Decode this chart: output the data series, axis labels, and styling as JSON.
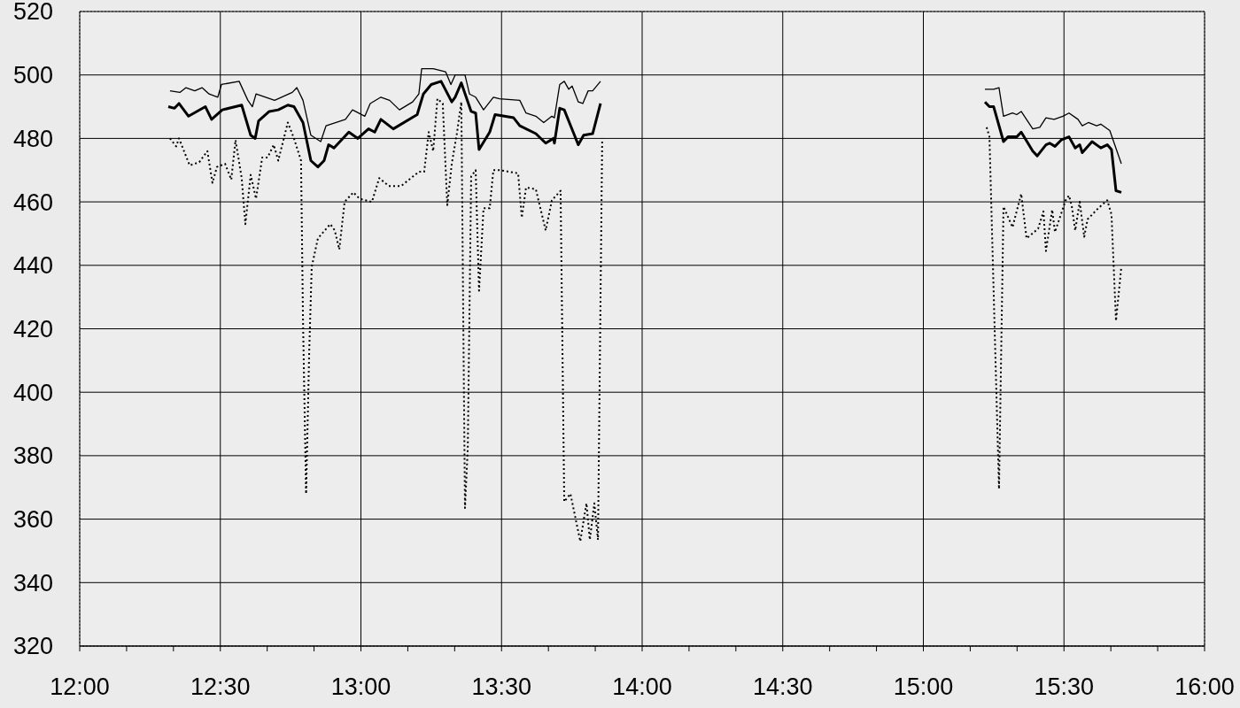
{
  "chart_data": {
    "type": "line",
    "grid": true,
    "marker": "none",
    "xlim": [
      12,
      16
    ],
    "ylim": [
      320,
      520
    ],
    "yticks": [
      320,
      340,
      360,
      380,
      400,
      420,
      440,
      460,
      480,
      500,
      520
    ],
    "xticks": [
      {
        "value": 12,
        "label": "12:00"
      },
      {
        "value": 12.1667,
        "label": null
      },
      {
        "value": 12.3333,
        "label": null
      },
      {
        "value": 12.5,
        "label": "12:30"
      },
      {
        "value": 12.6667,
        "label": null
      },
      {
        "value": 12.8333,
        "label": null
      },
      {
        "value": 13,
        "label": "13:00"
      },
      {
        "value": 13.1667,
        "label": null
      },
      {
        "value": 13.3333,
        "label": null
      },
      {
        "value": 13.5,
        "label": "13:30"
      },
      {
        "value": 13.6667,
        "label": null
      },
      {
        "value": 13.8333,
        "label": null
      },
      {
        "value": 14,
        "label": "14:00"
      },
      {
        "value": 14.1667,
        "label": null
      },
      {
        "value": 14.3333,
        "label": null
      },
      {
        "value": 14.5,
        "label": "14:30"
      },
      {
        "value": 14.6667,
        "label": null
      },
      {
        "value": 14.8333,
        "label": null
      },
      {
        "value": 15,
        "label": "15:00"
      },
      {
        "value": 15.1667,
        "label": null
      },
      {
        "value": 15.3333,
        "label": null
      },
      {
        "value": 15.5,
        "label": "15:30"
      },
      {
        "value": 15.6667,
        "label": null
      },
      {
        "value": 15.8333,
        "label": null
      },
      {
        "value": 16,
        "label": "16:00"
      }
    ],
    "series": [
      {
        "color": "#000000",
        "line_style": "solid",
        "x": [
          12.321,
          12.356,
          12.378,
          12.409,
          12.435,
          12.46,
          12.491,
          12.504,
          12.567,
          12.598,
          12.614,
          12.627,
          12.693,
          12.756,
          12.772,
          12.794,
          12.822,
          12.857,
          12.876,
          12.945,
          12.97,
          13.014,
          13.033,
          13.071,
          13.102,
          13.137,
          13.184,
          13.206,
          13.216,
          13.257,
          13.301,
          13.32,
          13.335,
          13.37,
          13.386,
          13.408,
          13.436,
          13.471,
          13.493,
          13.565,
          13.587,
          13.622,
          13.65,
          13.679,
          13.688,
          13.707,
          13.723,
          13.739,
          13.751,
          13.773,
          13.789,
          13.808,
          13.824,
          13.852,
          null,
          15.219,
          15.25,
          15.269,
          15.285,
          15.317,
          15.332,
          15.348,
          15.389,
          15.414,
          15.436,
          15.465,
          15.496,
          15.518,
          15.55,
          15.565,
          15.587,
          15.616,
          15.631,
          15.663,
          15.704
        ],
        "values": [
          495,
          494.5,
          496,
          495,
          496,
          494,
          493,
          497,
          498,
          492,
          490,
          494,
          492,
          494.5,
          496,
          492,
          481,
          479,
          484,
          486,
          489,
          487,
          491,
          493,
          492,
          489,
          491.5,
          494,
          502,
          502,
          501,
          497,
          500,
          500,
          494,
          493,
          489,
          493,
          492.5,
          492,
          488,
          487,
          485,
          487,
          486.5,
          497,
          498,
          495.5,
          496.5,
          491.5,
          491,
          495,
          495,
          498,
          null,
          495.5,
          495.5,
          496,
          487,
          488,
          487.5,
          488.5,
          483,
          483.5,
          486.5,
          486,
          487,
          488,
          486,
          484,
          485,
          484,
          484.5,
          482.5,
          472
        ]
      },
      {
        "color": "#000000",
        "line_style": "solid",
        "x": [
          12.315,
          12.337,
          12.353,
          12.387,
          12.447,
          12.469,
          12.507,
          12.576,
          12.608,
          12.624,
          12.636,
          12.674,
          12.706,
          12.74,
          12.762,
          12.794,
          12.822,
          12.847,
          12.869,
          12.885,
          12.904,
          12.957,
          12.989,
          13.027,
          13.049,
          13.071,
          13.115,
          13.2,
          13.222,
          13.25,
          13.285,
          13.323,
          13.335,
          13.357,
          13.392,
          13.408,
          13.42,
          13.458,
          13.477,
          13.543,
          13.565,
          13.622,
          13.657,
          13.685,
          13.688,
          13.707,
          13.723,
          13.757,
          13.773,
          13.792,
          13.824,
          13.852,
          null,
          15.219,
          15.235,
          15.25,
          15.285,
          15.301,
          15.332,
          15.348,
          15.389,
          15.405,
          15.436,
          15.449,
          15.468,
          15.49,
          15.518,
          15.54,
          15.556,
          15.565,
          15.6,
          15.631,
          15.654,
          15.669,
          15.685,
          15.704
        ],
        "values": [
          490,
          489.5,
          491,
          487,
          490,
          486,
          489,
          490.5,
          481,
          480,
          485.5,
          488.5,
          489,
          490.5,
          490,
          485,
          473,
          471,
          473,
          478,
          477,
          482,
          480,
          483,
          482,
          486,
          483,
          487.5,
          494,
          497,
          498,
          491.5,
          493,
          497.5,
          488.5,
          488,
          476.5,
          482,
          487.5,
          486.5,
          484,
          481.5,
          478.5,
          480,
          478.5,
          489.5,
          489,
          481.5,
          478,
          481,
          481.5,
          491,
          null,
          491.5,
          490,
          490,
          479,
          480.5,
          480.5,
          482,
          476,
          474.5,
          478,
          478.5,
          477.5,
          479.5,
          480.5,
          477,
          478,
          475.5,
          479,
          477,
          478,
          476.5,
          463.5,
          463
        ]
      },
      {
        "color": "#000000",
        "line_style": "dotted",
        "x": [
          12.321,
          12.343,
          12.353,
          12.391,
          12.425,
          12.454,
          12.472,
          12.488,
          12.517,
          12.539,
          12.554,
          12.576,
          12.589,
          12.608,
          12.627,
          12.649,
          12.668,
          12.69,
          12.706,
          12.74,
          12.762,
          12.787,
          12.794,
          12.805,
          12.816,
          12.825,
          12.847,
          12.891,
          12.907,
          12.923,
          12.942,
          12.973,
          12.995,
          13.039,
          13.065,
          13.099,
          13.143,
          13.178,
          13.206,
          13.225,
          13.241,
          13.257,
          13.272,
          13.291,
          13.307,
          13.323,
          13.342,
          13.357,
          13.37,
          13.38,
          13.392,
          13.408,
          13.42,
          13.436,
          13.458,
          13.471,
          13.493,
          13.559,
          13.572,
          13.587,
          13.622,
          13.657,
          13.679,
          13.71,
          13.723,
          13.745,
          13.78,
          13.802,
          13.814,
          13.83,
          13.843,
          13.858,
          null,
          15.225,
          15.235,
          15.269,
          15.285,
          15.317,
          15.348,
          15.367,
          15.408,
          15.427,
          15.436,
          15.458,
          15.468,
          15.506,
          15.518,
          15.528,
          15.54,
          15.556,
          15.572,
          15.584,
          15.622,
          15.654,
          15.669,
          15.685,
          15.704
        ],
        "values": [
          480,
          477.5,
          480,
          471.5,
          472.5,
          476,
          466,
          471,
          472,
          467,
          479.5,
          467.5,
          453,
          468.5,
          461,
          474,
          474,
          478,
          473,
          485,
          480,
          473,
          423,
          368,
          412.5,
          439.5,
          448.5,
          453,
          451,
          445,
          460,
          463,
          461,
          460,
          467.5,
          465,
          465,
          467.5,
          469.5,
          469.5,
          482,
          476,
          492.5,
          491,
          459,
          472,
          482,
          491.5,
          363.5,
          382.5,
          468,
          470,
          432,
          458,
          458,
          470,
          470,
          469,
          455,
          464.5,
          464,
          451,
          460.5,
          463.5,
          365.5,
          368,
          353,
          365,
          353.5,
          365,
          353.5,
          480,
          null,
          483.5,
          480.5,
          369.5,
          458.5,
          452,
          462.5,
          448.5,
          451.5,
          457,
          444.5,
          457.5,
          450.5,
          460.5,
          462,
          458.5,
          451,
          460,
          449,
          454.5,
          458,
          460.5,
          456,
          422.5,
          439.5
        ]
      }
    ]
  }
}
